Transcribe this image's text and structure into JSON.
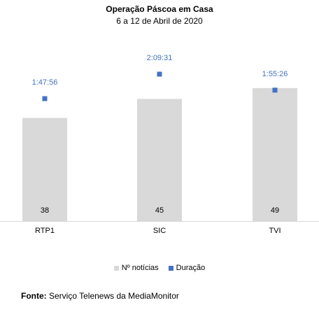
{
  "chart_data": {
    "type": "bar",
    "title": "Operação Páscoa em Casa",
    "subtitle": "6 a 12 de Abril de 2020",
    "categories": [
      "RTP1",
      "SIC",
      "TVI"
    ],
    "series": [
      {
        "name": "Nº notícias",
        "kind": "bar",
        "color": "#d9d9d9",
        "values": [
          38,
          45,
          49
        ]
      },
      {
        "name": "Duração",
        "kind": "scatter",
        "color": "#4472c4",
        "values": [
          "1:47:56",
          "2:09:31",
          "1:55:26"
        ]
      }
    ],
    "legend": "bottom",
    "grid": false
  },
  "source": {
    "label": "Fonte:",
    "text": " Serviço Telenews da MediaMonitor"
  }
}
